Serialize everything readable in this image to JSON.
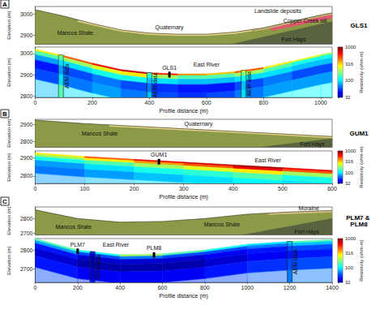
{
  "chart_data": [
    {
      "type": "cross_section",
      "panel": "A",
      "title": "GLS1",
      "xlabel": "Profile distance (m)",
      "xlim": [
        0,
        1040
      ],
      "xticks": [
        0,
        200,
        400,
        600,
        800,
        1000
      ],
      "surface": {
        "x": [
          0,
          100,
          200,
          300,
          400,
          500,
          600,
          700,
          800,
          900,
          1000,
          1040
        ],
        "elevation": [
          3020,
          2990,
          2955,
          2925,
          2910,
          2905,
          2905,
          2915,
          2935,
          2965,
          2995,
          3005
        ]
      },
      "geology": {
        "ylabel": "Elevation (m)",
        "ylim": [
          2860,
          3035
        ],
        "yticks": [
          2900,
          3000
        ],
        "tick_labels": "y",
        "units": [
          {
            "name": "Mancos Shale",
            "color": "#8b9a46",
            "label_at": [
              [
                140,
                2910
              ]
            ],
            "polygon": [
              [
                0,
                3020
              ],
              [
                100,
                2990
              ],
              [
                200,
                2955
              ],
              [
                300,
                2925
              ],
              [
                400,
                2910
              ],
              [
                500,
                2905
              ],
              [
                600,
                2905
              ],
              [
                700,
                2915
              ],
              [
                800,
                2935
              ],
              [
                900,
                2965
              ],
              [
                1000,
                2995
              ],
              [
                1040,
                3005
              ],
              [
                1040,
                2800
              ],
              [
                0,
                2800
              ]
            ]
          },
          {
            "name": "Fort Hays",
            "color": "#58633f",
            "label_at": [
              [
                905,
                2880
              ]
            ],
            "polygon": [
              [
                660,
                2800
              ],
              [
                660,
                2850
              ],
              [
                1040,
                2965
              ],
              [
                1040,
                2800
              ]
            ]
          },
          {
            "name": "Copper Creek sill",
            "color": "#e0576f",
            "label_at": [
              [
                945,
                2968
              ]
            ],
            "polygon": [
              [
                820,
                2933
              ],
              [
                1040,
                2998
              ],
              [
                1040,
                2980
              ],
              [
                830,
                2922
              ]
            ]
          },
          {
            "name": "Quaternary",
            "color": "#e9d48c",
            "label_at": [
              [
                470,
                2938
              ]
            ],
            "polygon": [
              [
                150,
                2970
              ],
              [
                200,
                2955
              ],
              [
                300,
                2925
              ],
              [
                400,
                2910
              ],
              [
                500,
                2905
              ],
              [
                600,
                2905
              ],
              [
                700,
                2915
              ],
              [
                760,
                2927
              ],
              [
                760,
                2920
              ],
              [
                700,
                2908
              ],
              [
                600,
                2898
              ],
              [
                500,
                2898
              ],
              [
                400,
                2903
              ],
              [
                300,
                2918
              ],
              [
                200,
                2948
              ],
              [
                150,
                2964
              ]
            ]
          },
          {
            "name": "Landslide deposits",
            "color": "#c9b27a",
            "label_at": [
              [
                850,
                3015
              ]
            ],
            "polygon": [
              [
                760,
                2927
              ],
              [
                800,
                2935
              ],
              [
                900,
                2965
              ],
              [
                1000,
                2995
              ],
              [
                1040,
                3005
              ],
              [
                1040,
                2997
              ],
              [
                1000,
                2987
              ],
              [
                900,
                2957
              ],
              [
                800,
                2927
              ],
              [
                770,
                2920
              ]
            ]
          }
        ]
      },
      "resistivity": {
        "ylabel": "Elevation (m)",
        "ylim": [
          2795,
          3030
        ],
        "yticks": [
          2800,
          2900,
          3000
        ],
        "depth_edges": [
          0,
          8,
          25,
          50,
          90,
          140,
          220
        ],
        "values": [
          [
            300,
            500,
            700,
            800,
            600,
            400,
            350,
            500,
            300,
            250,
            200
          ],
          [
            150,
            200,
            250,
            300,
            200,
            150,
            150,
            200,
            150,
            120,
            120
          ],
          [
            80,
            100,
            120,
            120,
            100,
            90,
            90,
            100,
            100,
            90,
            90
          ],
          [
            50,
            60,
            70,
            60,
            55,
            50,
            50,
            60,
            70,
            60,
            60
          ],
          [
            60,
            70,
            80,
            70,
            60,
            55,
            60,
            70,
            80,
            80,
            80
          ],
          [
            90,
            100,
            110,
            100,
            90,
            90,
            90,
            100,
            110,
            110,
            110
          ]
        ],
        "aem": {
          "label": "AEM data",
          "x": [
            90,
            400,
            730
          ],
          "values": [
            [
              200,
              150,
              100,
              80,
              100,
              150
            ],
            [
              150,
              120,
              90,
              70,
              90,
              120
            ],
            [
              250,
              180,
              120,
              90,
              100,
              130
            ]
          ]
        },
        "wells": [
          {
            "name": "GLS1",
            "x": 470,
            "top": 2915,
            "bottom": 2888
          }
        ],
        "labels": [
          {
            "text": "East River",
            "x": 600,
            "y": 2950
          }
        ]
      },
      "colorbar": {
        "label": "Resistivity (ohm-m)",
        "lim": [
          32,
          1000
        ],
        "ticks": [
          32,
          100,
          316,
          1000
        ],
        "log": true
      }
    },
    {
      "type": "cross_section",
      "panel": "B",
      "title": "GUM1",
      "xlabel": "Profile distance (m)",
      "xlim": [
        0,
        600
      ],
      "xticks": [
        0,
        100,
        200,
        300,
        400,
        500,
        600
      ],
      "surface": {
        "x": [
          0,
          100,
          200,
          300,
          400,
          500,
          600
        ],
        "elevation": [
          2925,
          2905,
          2890,
          2875,
          2860,
          2845,
          2830
        ]
      },
      "geology": {
        "ylabel": "Elevation (m)",
        "ylim": [
          2770,
          2930
        ],
        "yticks": [
          2800,
          2900
        ],
        "tick_labels": "y",
        "units": [
          {
            "name": "Mancos Shale",
            "color": "#8b9a46",
            "label_at": [
              [
                130,
                2850
              ]
            ],
            "polygon": [
              [
                0,
                2925
              ],
              [
                100,
                2905
              ],
              [
                200,
                2890
              ],
              [
                300,
                2875
              ],
              [
                400,
                2860
              ],
              [
                500,
                2845
              ],
              [
                600,
                2830
              ],
              [
                600,
                2700
              ],
              [
                0,
                2700
              ]
            ]
          },
          {
            "name": "Fort Hays",
            "color": "#58633f",
            "label_at": [
              [
                560,
                2788
              ]
            ],
            "polygon": [
              [
                430,
                2700
              ],
              [
                430,
                2760
              ],
              [
                600,
                2818
              ],
              [
                600,
                2700
              ]
            ]
          },
          {
            "name": "Quaternary",
            "color": "#e9d48c",
            "label_at": [
              [
                330,
                2902
              ]
            ],
            "polygon": [
              [
                150,
                2897
              ],
              [
                200,
                2890
              ],
              [
                300,
                2875
              ],
              [
                400,
                2860
              ],
              [
                500,
                2845
              ],
              [
                600,
                2830
              ],
              [
                600,
                2822
              ],
              [
                500,
                2837
              ],
              [
                400,
                2852
              ],
              [
                300,
                2867
              ],
              [
                200,
                2882
              ],
              [
                150,
                2889
              ]
            ]
          }
        ]
      },
      "resistivity": {
        "ylabel": "Elevation (m)",
        "ylim": [
          2760,
          2935
        ],
        "yticks": [
          2800,
          2900
        ],
        "depth_edges": [
          0,
          8,
          20,
          40,
          70,
          110,
          160
        ],
        "values": [
          [
            300,
            500,
            700,
            800,
            900,
            700
          ],
          [
            200,
            300,
            400,
            500,
            700,
            500
          ],
          [
            120,
            150,
            200,
            250,
            300,
            200
          ],
          [
            80,
            100,
            120,
            130,
            150,
            120
          ],
          [
            70,
            80,
            90,
            100,
            110,
            100
          ],
          [
            80,
            90,
            100,
            110,
            120,
            110
          ]
        ],
        "wells": [
          {
            "name": "GUM1",
            "x": 250,
            "top": 2892,
            "bottom": 2862
          }
        ],
        "labels": [
          {
            "text": "East River",
            "x": 470,
            "y": 2885
          }
        ]
      },
      "colorbar": {
        "label": "Resistivity (ohm-m)",
        "lim": [
          32,
          1000
        ],
        "ticks": [
          32,
          100,
          316,
          1000
        ],
        "log": true
      }
    },
    {
      "type": "cross_section",
      "panel": "C",
      "title": "PLM7 & PLM8",
      "xlabel": "Profile distance (m)",
      "xlim": [
        0,
        1400
      ],
      "xticks": [
        0,
        200,
        400,
        600,
        800,
        1000,
        1200,
        1400
      ],
      "surface": {
        "x": [
          0,
          200,
          400,
          600,
          800,
          1000,
          1200,
          1400
        ],
        "elevation": [
          2860,
          2800,
          2775,
          2780,
          2800,
          2830,
          2845,
          2855
        ]
      },
      "geology": {
        "ylabel": "Elevation (m)",
        "ylim": [
          2690,
          2880
        ],
        "yticks": [
          2700,
          2800
        ],
        "tick_labels": "y",
        "units": [
          {
            "name": "Mancos Shale",
            "color": "#8b9a46",
            "label_at": [
              [
                180,
                2745
              ],
              [
                880,
                2760
              ]
            ],
            "polygon": [
              [
                0,
                2860
              ],
              [
                200,
                2800
              ],
              [
                400,
                2775
              ],
              [
                600,
                2780
              ],
              [
                800,
                2800
              ],
              [
                1000,
                2830
              ],
              [
                1200,
                2845
              ],
              [
                1400,
                2855
              ],
              [
                1400,
                2600
              ],
              [
                0,
                2600
              ]
            ]
          },
          {
            "name": "Fort Hays",
            "color": "#58633f",
            "label_at": [
              [
                1280,
                2712
              ]
            ],
            "polygon": [
              [
                950,
                2600
              ],
              [
                950,
                2680
              ],
              [
                1400,
                2800
              ],
              [
                1400,
                2600
              ]
            ]
          },
          {
            "name": "Moraine",
            "color": "#d9c38a",
            "label_at": [
              [
                1290,
                2870
              ]
            ],
            "polygon": [
              [
                1100,
                2837
              ],
              [
                1200,
                2845
              ],
              [
                1400,
                2855
              ],
              [
                1400,
                2843
              ],
              [
                1200,
                2833
              ],
              [
                1100,
                2827
              ]
            ]
          }
        ]
      },
      "resistivity": {
        "ylabel": "Elevation (m)",
        "ylim": [
          2630,
          2860
        ],
        "yticks": [
          2700,
          2800
        ],
        "depth_edges": [
          0,
          10,
          25,
          50,
          90,
          150,
          230
        ],
        "values": [
          [
            150,
            120,
            200,
            150,
            120,
            100,
            150
          ],
          [
            80,
            60,
            70,
            60,
            60,
            70,
            90
          ],
          [
            50,
            40,
            40,
            40,
            45,
            50,
            60
          ],
          [
            40,
            35,
            35,
            35,
            40,
            45,
            50
          ],
          [
            50,
            45,
            45,
            45,
            50,
            55,
            60
          ],
          [
            60,
            55,
            55,
            55,
            60,
            65,
            70
          ]
        ],
        "aem": {
          "label": "AEM data",
          "x": [
            270,
            1200
          ],
          "values": [
            [
              50,
              40,
              35,
              35,
              40,
              50
            ],
            [
              100,
              80,
              60,
              50,
              60,
              70
            ]
          ]
        },
        "wells": [
          {
            "name": "PLM7",
            "x": 200,
            "top": 2808,
            "bottom": 2780
          },
          {
            "name": "PLM8",
            "x": 560,
            "top": 2788,
            "bottom": 2760
          }
        ],
        "labels": [
          {
            "text": "East River",
            "x": 380,
            "y": 2830
          }
        ]
      },
      "colorbar": {
        "label": "Resistivity (ohm-m)",
        "lim": [
          32,
          1000
        ],
        "ticks": [
          32,
          100,
          316,
          1000
        ],
        "log": true
      }
    }
  ]
}
